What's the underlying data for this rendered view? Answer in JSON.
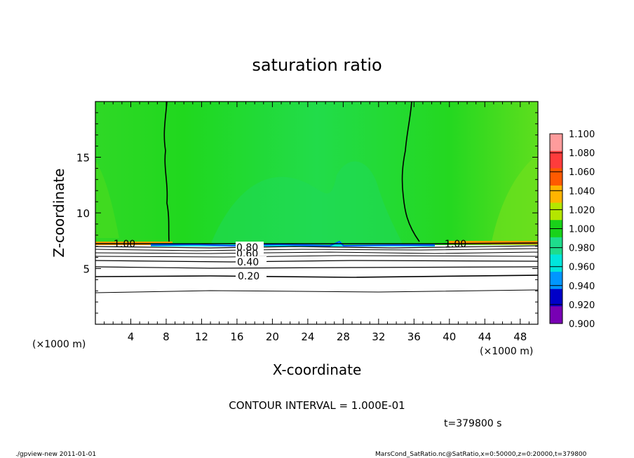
{
  "chart_data": {
    "type": "heatmap",
    "title": "saturation ratio",
    "xlabel": "X-coordinate",
    "ylabel": "Z-coordinate",
    "x_unit_left": "(×1000 m)",
    "x_unit_right": "(×1000 m)",
    "xlim": [
      0,
      50
    ],
    "ylim": [
      0,
      20
    ],
    "x_ticks": [
      "4",
      "8",
      "12",
      "16",
      "20",
      "24",
      "28",
      "32",
      "36",
      "40",
      "44",
      "48"
    ],
    "y_ticks": [
      "5",
      "10",
      "15"
    ],
    "colorbar": {
      "levels": [
        "1.100",
        "1.080",
        "1.060",
        "1.040",
        "1.020",
        "1.000",
        "0.980",
        "0.960",
        "0.940",
        "0.920",
        "0.900"
      ],
      "colors": [
        "#ff9c9c",
        "#ff3c3c",
        "#ff5a00",
        "#ffb400",
        "#b4e600",
        "#19d219",
        "#1edc8c",
        "#00e6dc",
        "#0096ff",
        "#0000c8",
        "#7800b4"
      ]
    },
    "contour_labels": [
      "1.00",
      "1.00",
      "0.80",
      "0.60",
      "0.40",
      "0.20"
    ],
    "contour_interval_text": "CONTOUR INTERVAL = 1.000E-01",
    "time_text": "t=379800 s",
    "footer_left": "./gpview-new   2011-01-01",
    "footer_right": "MarsCond_SatRatio.nc@SatRatio,x=0:50000,z=0:20000,t=379800"
  }
}
